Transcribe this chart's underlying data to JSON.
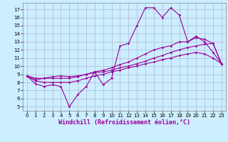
{
  "title": "",
  "xlabel": "Windchill (Refroidissement éolien,°C)",
  "bg_color": "#cceeff",
  "grid_color": "#aaaacc",
  "line_color": "#990099",
  "x_ticks": [
    0,
    1,
    2,
    3,
    4,
    5,
    6,
    7,
    8,
    9,
    10,
    11,
    12,
    13,
    14,
    15,
    16,
    17,
    18,
    19,
    20,
    21,
    22,
    23
  ],
  "y_ticks": [
    5,
    6,
    7,
    8,
    9,
    10,
    11,
    12,
    13,
    14,
    15,
    16,
    17
  ],
  "ylim": [
    4.5,
    17.8
  ],
  "xlim": [
    -0.5,
    23.5
  ],
  "line1_y": [
    8.8,
    7.8,
    7.5,
    7.7,
    7.5,
    5.0,
    6.5,
    7.5,
    9.3,
    7.7,
    8.5,
    12.5,
    12.8,
    15.0,
    17.2,
    17.2,
    16.0,
    17.2,
    16.3,
    13.0,
    13.7,
    13.0,
    11.7,
    10.3
  ],
  "line2_y": [
    8.8,
    8.3,
    8.5,
    8.7,
    8.8,
    8.7,
    8.8,
    9.0,
    9.2,
    9.3,
    9.5,
    9.8,
    10.0,
    10.3,
    10.6,
    11.0,
    11.3,
    11.7,
    12.0,
    12.3,
    12.5,
    12.7,
    12.8,
    10.3
  ],
  "line3_y": [
    8.8,
    8.5,
    8.5,
    8.5,
    8.5,
    8.5,
    8.7,
    9.0,
    9.3,
    9.5,
    9.8,
    10.2,
    10.5,
    11.0,
    11.5,
    12.0,
    12.3,
    12.5,
    13.0,
    13.0,
    13.5,
    13.3,
    12.8,
    10.3
  ],
  "line4_y": [
    8.8,
    8.2,
    8.0,
    8.0,
    8.0,
    8.0,
    8.2,
    8.5,
    8.8,
    9.0,
    9.3,
    9.5,
    9.8,
    10.0,
    10.3,
    10.5,
    10.8,
    11.0,
    11.3,
    11.5,
    11.7,
    11.5,
    11.0,
    10.3
  ],
  "markersize": 1.8,
  "linewidth": 0.8,
  "tick_fontsize": 5.0,
  "label_fontsize": 6.0
}
